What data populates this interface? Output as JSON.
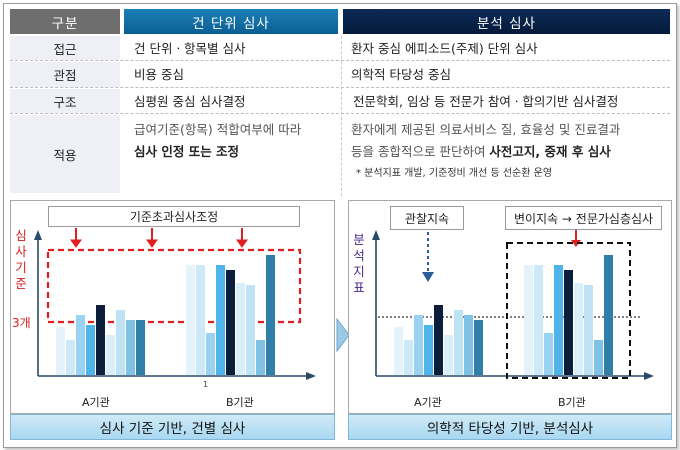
{
  "table": {
    "header": {
      "category": "구분",
      "case_review": "건 단위 심사",
      "analytic_review": "분석 심사"
    },
    "rows": [
      {
        "label": "접근",
        "a": "건 단위ㆍ항목별 심사",
        "b": "환자 중심 에피소드(주제) 단위 심사"
      },
      {
        "label": "관점",
        "a": "비용 중심",
        "b": "의학적 타당성 중심"
      },
      {
        "label": "구조",
        "a": "심평원 중심 심사결정",
        "b": "전문학회, 임상 등 전문가 참여ㆍ합의기반 심사결정"
      },
      {
        "label": "적용",
        "a_line1": "급여기준(항목) 적합여부에 따라",
        "a_line2": "심사 인정 또는 조정",
        "b_line1": "환자에게 제공된 의료서비스 질, 효율성 및 진료결과",
        "b_line2_normal": "등을 종합적으로 판단하여 ",
        "b_line2_bold": "사전고지, 중재 후 심사",
        "b_note": "* 분석지표 개발, 기준정비 개선 등 선순환 운영"
      }
    ]
  },
  "left_panel": {
    "top_label": "기준초과심사조정",
    "y_axis_chars": [
      "심",
      "사",
      "기",
      "준"
    ],
    "threshold_label": "3개",
    "x_labels": [
      "A기관",
      "B기관"
    ],
    "axis_tick": "1",
    "caption": "심사 기준 기반, 건별 심사"
  },
  "right_panel": {
    "observe_label": "관찰지속",
    "shift_label": "변이지속 → 전문가심층심사",
    "y_axis_chars": [
      "분",
      "석",
      "지",
      "표"
    ],
    "x_labels": [
      "A기관",
      "B기관"
    ],
    "caption": "의학적 타당성 기반, 분석심사"
  },
  "chart_data": [
    {
      "type": "bar",
      "title": "기준초과심사조정",
      "ylabel": "심사기준",
      "threshold_label": "3개",
      "categories": [
        "A기관",
        "B기관"
      ],
      "series_values": {
        "A기관": [
          48,
          35,
          60,
          50,
          70,
          40,
          65,
          55,
          55
        ],
        "B기관": [
          110,
          110,
          42,
          110,
          105,
          92,
          90,
          35,
          120
        ]
      }
    },
    {
      "type": "bar",
      "title": "분석지표",
      "ylabel": "분석지표",
      "categories": [
        "A기관",
        "B기관"
      ],
      "series_values": {
        "A기관": [
          48,
          35,
          60,
          50,
          70,
          40,
          65,
          60,
          55
        ],
        "B기관": [
          110,
          110,
          42,
          110,
          105,
          92,
          90,
          35,
          120
        ]
      }
    }
  ]
}
